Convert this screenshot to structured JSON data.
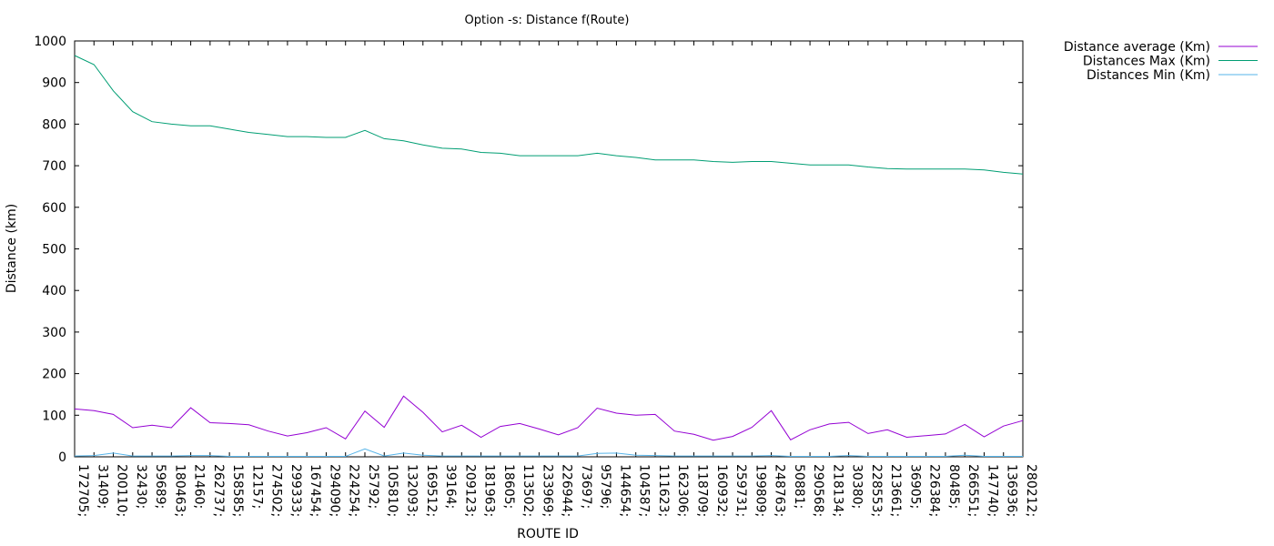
{
  "chart_data": {
    "type": "line",
    "title": "Option -s: Distance f(Route)",
    "xlabel": "ROUTE ID",
    "ylabel": "Distance (km)",
    "ylim": [
      0,
      1000
    ],
    "yticks": [
      0,
      100,
      200,
      300,
      400,
      500,
      600,
      700,
      800,
      900,
      1000
    ],
    "legend_position": "outside-top-right",
    "categories": [
      "172705;",
      "31409;",
      "200110;",
      "32430;",
      "59689;",
      "180463;",
      "21460;",
      "262737;",
      "158585;",
      "12157;",
      "274502;",
      "299333;",
      "167454;",
      "294090;",
      "224254;",
      "25792;",
      "105810;",
      "132093;",
      "169512;",
      "39164;",
      "209123;",
      "181963;",
      "18605;",
      "113502;",
      "233969;",
      "226944;",
      "73697;",
      "95796;",
      "144654;",
      "104587;",
      "111623;",
      "162306;",
      "118709;",
      "160932;",
      "259731;",
      "199809;",
      "248763;",
      "50881;",
      "290568;",
      "218134;",
      "30380;",
      "228553;",
      "213661;",
      "36905;",
      "226384;",
      "80485;",
      "266551;",
      "147740;",
      "136936;",
      "280212;"
    ],
    "series": [
      {
        "name": "Distance average (Km)",
        "color": "#9400d3",
        "values": [
          115,
          111,
          102,
          70,
          76,
          70,
          118,
          82,
          80,
          77,
          62,
          50,
          58,
          70,
          43,
          110,
          71,
          146,
          107,
          60,
          76,
          47,
          73,
          80,
          67,
          53,
          70,
          117,
          105,
          100,
          102,
          62,
          54,
          40,
          49,
          71,
          111,
          41,
          65,
          79,
          83,
          56,
          65,
          47,
          51,
          55,
          78,
          48,
          74,
          87
        ]
      },
      {
        "name": "Distances Max (Km)",
        "color": "#009e73",
        "values": [
          965,
          943,
          880,
          830,
          806,
          800,
          796,
          796,
          788,
          780,
          775,
          770,
          770,
          768,
          768,
          785,
          765,
          760,
          750,
          742,
          740,
          732,
          730,
          724,
          724,
          724,
          724,
          730,
          724,
          720,
          714,
          714,
          714,
          710,
          708,
          710,
          710,
          706,
          702,
          702,
          702,
          697,
          693,
          692,
          692,
          692,
          692,
          690,
          684,
          680
        ]
      },
      {
        "name": "Distances Min (Km)",
        "color": "#56b4e9",
        "values": [
          2,
          3,
          9,
          2,
          2,
          2,
          3,
          3,
          1,
          1,
          1,
          1,
          1,
          1,
          1,
          19,
          2,
          9,
          4,
          2,
          2,
          2,
          2,
          2,
          2,
          2,
          2,
          8,
          9,
          4,
          3,
          2,
          2,
          2,
          2,
          2,
          3,
          1,
          1,
          1,
          3,
          1,
          1,
          1,
          1,
          1,
          4,
          1,
          1,
          1
        ]
      }
    ]
  }
}
